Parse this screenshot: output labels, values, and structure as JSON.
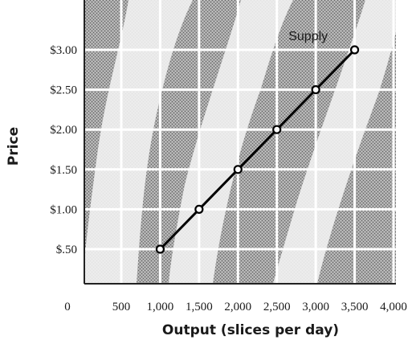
{
  "chart_data": {
    "type": "line",
    "title": "",
    "xlabel": "Output (slices per day)",
    "ylabel": "Price",
    "origin_label": "0",
    "xlim": [
      0,
      4000
    ],
    "ylim": [
      0,
      3.5
    ],
    "x_ticks": [
      500,
      1000,
      1500,
      2000,
      2500,
      3000,
      3500,
      4000
    ],
    "x_tick_labels": [
      "500",
      "1,000",
      "1,500",
      "2,000",
      "2,500",
      "3,000",
      "3,500",
      "4,000"
    ],
    "y_ticks": [
      0.5,
      1.0,
      1.5,
      2.0,
      2.5,
      3.0
    ],
    "y_tick_labels": [
      "$.50",
      "$1.00",
      "$1.50",
      "$2.00",
      "$2.50",
      "$3.00"
    ],
    "grid": true,
    "series": [
      {
        "name": "Supply",
        "x": [
          1000,
          1500,
          2000,
          2500,
          3000,
          3500
        ],
        "y": [
          0.5,
          1.0,
          1.5,
          2.0,
          2.5,
          3.0
        ]
      }
    ],
    "annotations": [
      {
        "text": "Supply",
        "x": 2650,
        "y": 3.12
      }
    ],
    "colors": {
      "plot_background": "#9a9a9a",
      "grid": "#ffffff",
      "line": "#000000",
      "marker_fill": "#ffffff",
      "text": "#1a1a1a"
    }
  }
}
